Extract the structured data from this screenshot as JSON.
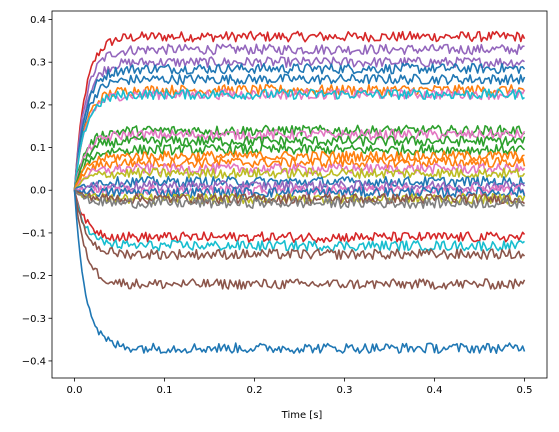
{
  "chart_data": {
    "type": "line",
    "title": "",
    "xlabel": "Time [s]",
    "ylabel": "",
    "xlim": [
      -0.025,
      0.525
    ],
    "ylim": [
      -0.44,
      0.42
    ],
    "x_ticks": [
      0.0,
      0.1,
      0.2,
      0.3,
      0.4,
      0.5
    ],
    "x_tick_labels": [
      "0.0",
      "0.1",
      "0.2",
      "0.3",
      "0.4",
      "0.5"
    ],
    "y_ticks": [
      -0.4,
      -0.3,
      -0.2,
      -0.1,
      0.0,
      0.1,
      0.2,
      0.3,
      0.4
    ],
    "y_tick_labels": [
      "−0.4",
      "−0.3",
      "−0.2",
      "−0.1",
      "0.0",
      "0.1",
      "0.2",
      "0.3",
      "0.4"
    ],
    "grid": false,
    "x_range": [
      0.0,
      0.5
    ],
    "noise_amplitude": 0.012,
    "rise_time_constant": 0.012,
    "series": [
      {
        "color": "#d62728",
        "steady_value": 0.36
      },
      {
        "color": "#9467bd",
        "steady_value": 0.33
      },
      {
        "color": "#9467bd",
        "steady_value": 0.3
      },
      {
        "color": "#1f77b4",
        "steady_value": 0.285
      },
      {
        "color": "#1f77b4",
        "steady_value": 0.26
      },
      {
        "color": "#ff7f0e",
        "steady_value": 0.235
      },
      {
        "color": "#e377c2",
        "steady_value": 0.225
      },
      {
        "color": "#17becf",
        "steady_value": 0.225
      },
      {
        "color": "#2ca02c",
        "steady_value": 0.14
      },
      {
        "color": "#e377c2",
        "steady_value": 0.13
      },
      {
        "color": "#2ca02c",
        "steady_value": 0.115
      },
      {
        "color": "#2ca02c",
        "steady_value": 0.095
      },
      {
        "color": "#ff7f0e",
        "steady_value": 0.08
      },
      {
        "color": "#ff7f0e",
        "steady_value": 0.065
      },
      {
        "color": "#e377c2",
        "steady_value": 0.05
      },
      {
        "color": "#bcbd22",
        "steady_value": 0.04
      },
      {
        "color": "#1f77b4",
        "steady_value": 0.02
      },
      {
        "color": "#9467bd",
        "steady_value": 0.01
      },
      {
        "color": "#e377c2",
        "steady_value": 0.0
      },
      {
        "color": "#1f77b4",
        "steady_value": -0.005
      },
      {
        "color": "#bcbd22",
        "steady_value": -0.02
      },
      {
        "color": "#8c564b",
        "steady_value": -0.02
      },
      {
        "color": "#7f7f7f",
        "steady_value": -0.03
      },
      {
        "color": "#d62728",
        "steady_value": -0.11
      },
      {
        "color": "#17becf",
        "steady_value": -0.13
      },
      {
        "color": "#8c564b",
        "steady_value": -0.15
      },
      {
        "color": "#8c564b",
        "steady_value": -0.22
      },
      {
        "color": "#1f77b4",
        "steady_value": -0.37
      }
    ]
  }
}
